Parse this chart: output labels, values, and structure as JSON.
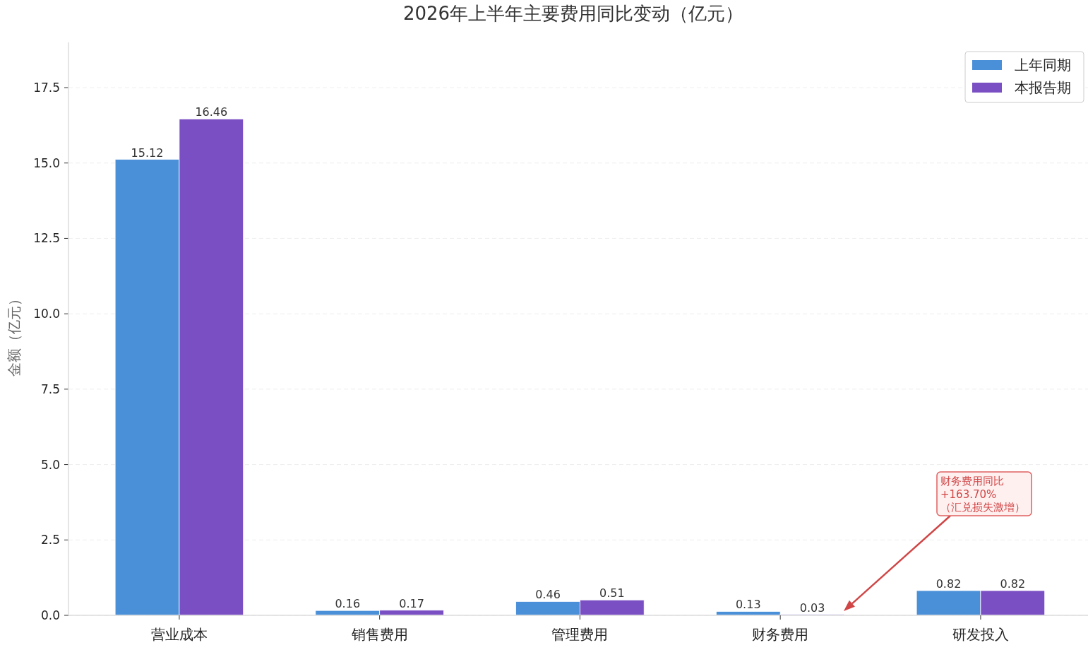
{
  "chart_data": {
    "type": "bar",
    "title": "2026年上半年主要费用同比变动（亿元）",
    "ylabel": "金额（亿元）",
    "categories": [
      "营业成本",
      "销售费用",
      "管理费用",
      "财务费用",
      "研发投入"
    ],
    "series": [
      {
        "name": "上年同期",
        "color": "#4a90d9",
        "values": [
          15.12,
          0.16,
          0.46,
          0.13,
          0.82
        ]
      },
      {
        "name": "本报告期",
        "color": "#7b4fc4",
        "values": [
          16.46,
          0.17,
          0.51,
          0.03,
          0.82
        ]
      }
    ],
    "ylim": [
      0,
      19
    ],
    "yticks": [
      {
        "value": 0,
        "label": "0.0"
      },
      2.5,
      {
        "value": 5,
        "label": "5.0"
      },
      7.5,
      {
        "value": 10,
        "label": "10.0"
      },
      12.5,
      {
        "value": 15,
        "label": "15.0"
      },
      17.5
    ],
    "grid": "y",
    "legend": "top right",
    "data_labels": true,
    "annotations": [
      "财务费用同比\n+163.70%\n（汇兑损失激增）"
    ]
  }
}
